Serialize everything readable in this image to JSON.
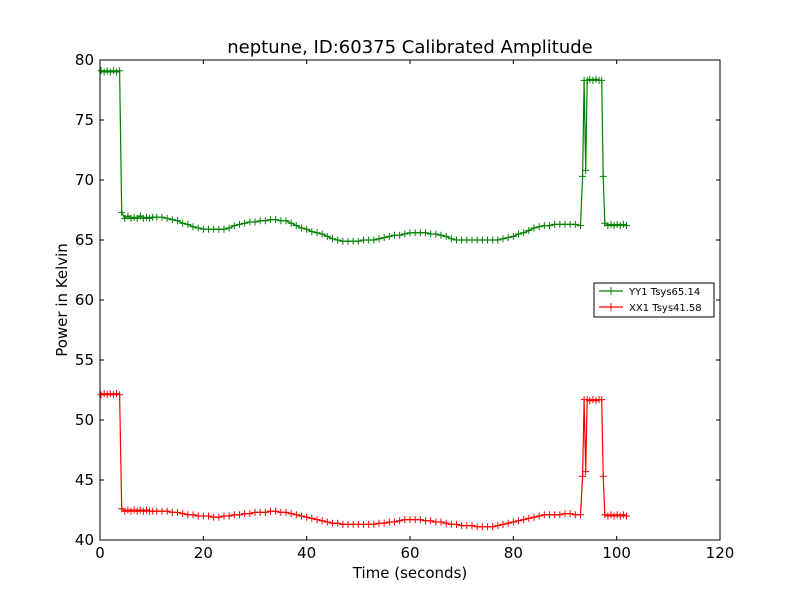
{
  "chart_data": {
    "type": "line",
    "title": "neptune, ID:60375 Calibrated Amplitude",
    "xlabel": "Time (seconds)",
    "ylabel": "Power in Kelvin",
    "xlim": [
      0,
      120
    ],
    "ylim": [
      40,
      80
    ],
    "xticks": [
      0,
      20,
      40,
      60,
      80,
      100,
      120
    ],
    "yticks": [
      40,
      45,
      50,
      55,
      60,
      65,
      70,
      75,
      80
    ],
    "grid": false,
    "legend_position": "right",
    "marker": "+",
    "series": [
      {
        "name": "YY1 Tsys65.14",
        "color": "#008000",
        "points": [
          [
            0.2,
            79.1
          ],
          [
            0.8,
            79.0
          ],
          [
            1.4,
            79.1
          ],
          [
            2.0,
            79.0
          ],
          [
            2.6,
            79.1
          ],
          [
            3.2,
            79.0
          ],
          [
            3.8,
            79.1
          ],
          [
            4.2,
            67.3
          ],
          [
            4.8,
            66.8
          ],
          [
            5.4,
            67.0
          ],
          [
            6.0,
            66.8
          ],
          [
            6.6,
            66.9
          ],
          [
            7.2,
            66.8
          ],
          [
            7.8,
            67.0
          ],
          [
            8.4,
            66.8
          ],
          [
            9.0,
            66.9
          ],
          [
            9.6,
            66.8
          ],
          [
            10.2,
            66.9
          ],
          [
            11.0,
            66.9
          ],
          [
            12.0,
            66.9
          ],
          [
            13.0,
            66.8
          ],
          [
            14.0,
            66.7
          ],
          [
            15.0,
            66.6
          ],
          [
            16.0,
            66.4
          ],
          [
            17.0,
            66.3
          ],
          [
            18.0,
            66.1
          ],
          [
            19.0,
            66.0
          ],
          [
            20.0,
            65.9
          ],
          [
            21.0,
            65.9
          ],
          [
            22.0,
            65.9
          ],
          [
            23.0,
            65.9
          ],
          [
            24.0,
            65.9
          ],
          [
            25.0,
            66.0
          ],
          [
            26.0,
            66.2
          ],
          [
            27.0,
            66.3
          ],
          [
            28.0,
            66.4
          ],
          [
            29.0,
            66.5
          ],
          [
            30.0,
            66.5
          ],
          [
            31.0,
            66.6
          ],
          [
            32.0,
            66.6
          ],
          [
            33.0,
            66.7
          ],
          [
            34.0,
            66.7
          ],
          [
            35.0,
            66.6
          ],
          [
            36.0,
            66.6
          ],
          [
            37.0,
            66.4
          ],
          [
            38.0,
            66.2
          ],
          [
            39.0,
            66.0
          ],
          [
            40.0,
            65.9
          ],
          [
            41.0,
            65.7
          ],
          [
            42.0,
            65.6
          ],
          [
            43.0,
            65.5
          ],
          [
            44.0,
            65.3
          ],
          [
            45.0,
            65.1
          ],
          [
            46.0,
            65.0
          ],
          [
            47.0,
            64.9
          ],
          [
            48.0,
            64.9
          ],
          [
            49.0,
            64.9
          ],
          [
            50.0,
            64.9
          ],
          [
            51.0,
            65.0
          ],
          [
            52.0,
            65.0
          ],
          [
            53.0,
            65.0
          ],
          [
            54.0,
            65.1
          ],
          [
            55.0,
            65.2
          ],
          [
            56.0,
            65.3
          ],
          [
            57.0,
            65.4
          ],
          [
            58.0,
            65.4
          ],
          [
            59.0,
            65.5
          ],
          [
            60.0,
            65.6
          ],
          [
            61.0,
            65.6
          ],
          [
            62.0,
            65.6
          ],
          [
            63.0,
            65.6
          ],
          [
            64.0,
            65.5
          ],
          [
            65.0,
            65.5
          ],
          [
            66.0,
            65.4
          ],
          [
            67.0,
            65.3
          ],
          [
            68.0,
            65.1
          ],
          [
            69.0,
            65.0
          ],
          [
            70.0,
            65.0
          ],
          [
            71.0,
            65.0
          ],
          [
            72.0,
            65.0
          ],
          [
            73.0,
            65.0
          ],
          [
            74.0,
            65.0
          ],
          [
            75.0,
            65.0
          ],
          [
            76.0,
            65.0
          ],
          [
            77.0,
            65.0
          ],
          [
            78.0,
            65.1
          ],
          [
            79.0,
            65.2
          ],
          [
            80.0,
            65.3
          ],
          [
            81.0,
            65.5
          ],
          [
            82.0,
            65.6
          ],
          [
            83.0,
            65.8
          ],
          [
            84.0,
            66.0
          ],
          [
            85.0,
            66.1
          ],
          [
            86.0,
            66.2
          ],
          [
            87.0,
            66.2
          ],
          [
            88.0,
            66.3
          ],
          [
            89.0,
            66.3
          ],
          [
            90.0,
            66.3
          ],
          [
            91.0,
            66.3
          ],
          [
            92.0,
            66.3
          ],
          [
            93.0,
            66.2
          ],
          [
            93.4,
            70.3
          ],
          [
            93.7,
            78.3
          ],
          [
            94.0,
            70.8
          ],
          [
            94.3,
            78.3
          ],
          [
            94.8,
            78.4
          ],
          [
            95.4,
            78.3
          ],
          [
            96.0,
            78.4
          ],
          [
            96.6,
            78.3
          ],
          [
            97.1,
            78.3
          ],
          [
            97.4,
            70.3
          ],
          [
            97.7,
            66.4
          ],
          [
            98.3,
            66.2
          ],
          [
            98.9,
            66.3
          ],
          [
            99.5,
            66.2
          ],
          [
            100.1,
            66.3
          ],
          [
            100.7,
            66.2
          ],
          [
            101.3,
            66.3
          ],
          [
            101.9,
            66.2
          ]
        ]
      },
      {
        "name": "XX1 Tsys41.58",
        "color": "#ff0000",
        "points": [
          [
            0.2,
            52.1
          ],
          [
            0.8,
            52.2
          ],
          [
            1.4,
            52.1
          ],
          [
            2.0,
            52.2
          ],
          [
            2.6,
            52.1
          ],
          [
            3.2,
            52.2
          ],
          [
            3.8,
            52.1
          ],
          [
            4.2,
            42.6
          ],
          [
            4.8,
            42.4
          ],
          [
            5.4,
            42.5
          ],
          [
            6.0,
            42.4
          ],
          [
            6.6,
            42.5
          ],
          [
            7.2,
            42.4
          ],
          [
            7.8,
            42.5
          ],
          [
            8.4,
            42.4
          ],
          [
            9.0,
            42.5
          ],
          [
            9.6,
            42.4
          ],
          [
            10.2,
            42.4
          ],
          [
            11.0,
            42.4
          ],
          [
            12.0,
            42.4
          ],
          [
            13.0,
            42.4
          ],
          [
            14.0,
            42.3
          ],
          [
            15.0,
            42.3
          ],
          [
            16.0,
            42.2
          ],
          [
            17.0,
            42.1
          ],
          [
            18.0,
            42.1
          ],
          [
            19.0,
            42.0
          ],
          [
            20.0,
            42.0
          ],
          [
            21.0,
            42.0
          ],
          [
            22.0,
            41.9
          ],
          [
            23.0,
            41.9
          ],
          [
            24.0,
            42.0
          ],
          [
            25.0,
            42.0
          ],
          [
            26.0,
            42.1
          ],
          [
            27.0,
            42.1
          ],
          [
            28.0,
            42.2
          ],
          [
            29.0,
            42.2
          ],
          [
            30.0,
            42.3
          ],
          [
            31.0,
            42.3
          ],
          [
            32.0,
            42.3
          ],
          [
            33.0,
            42.4
          ],
          [
            34.0,
            42.4
          ],
          [
            35.0,
            42.3
          ],
          [
            36.0,
            42.3
          ],
          [
            37.0,
            42.2
          ],
          [
            38.0,
            42.1
          ],
          [
            39.0,
            42.0
          ],
          [
            40.0,
            41.9
          ],
          [
            41.0,
            41.8
          ],
          [
            42.0,
            41.7
          ],
          [
            43.0,
            41.6
          ],
          [
            44.0,
            41.5
          ],
          [
            45.0,
            41.4
          ],
          [
            46.0,
            41.4
          ],
          [
            47.0,
            41.3
          ],
          [
            48.0,
            41.3
          ],
          [
            49.0,
            41.3
          ],
          [
            50.0,
            41.3
          ],
          [
            51.0,
            41.3
          ],
          [
            52.0,
            41.3
          ],
          [
            53.0,
            41.3
          ],
          [
            54.0,
            41.4
          ],
          [
            55.0,
            41.4
          ],
          [
            56.0,
            41.5
          ],
          [
            57.0,
            41.5
          ],
          [
            58.0,
            41.6
          ],
          [
            59.0,
            41.7
          ],
          [
            60.0,
            41.7
          ],
          [
            61.0,
            41.7
          ],
          [
            62.0,
            41.7
          ],
          [
            63.0,
            41.6
          ],
          [
            64.0,
            41.6
          ],
          [
            65.0,
            41.5
          ],
          [
            66.0,
            41.5
          ],
          [
            67.0,
            41.4
          ],
          [
            68.0,
            41.3
          ],
          [
            69.0,
            41.3
          ],
          [
            70.0,
            41.2
          ],
          [
            71.0,
            41.2
          ],
          [
            72.0,
            41.2
          ],
          [
            73.0,
            41.1
          ],
          [
            74.0,
            41.1
          ],
          [
            75.0,
            41.1
          ],
          [
            76.0,
            41.1
          ],
          [
            77.0,
            41.2
          ],
          [
            78.0,
            41.3
          ],
          [
            79.0,
            41.4
          ],
          [
            80.0,
            41.5
          ],
          [
            81.0,
            41.6
          ],
          [
            82.0,
            41.7
          ],
          [
            83.0,
            41.8
          ],
          [
            84.0,
            41.9
          ],
          [
            85.0,
            42.0
          ],
          [
            86.0,
            42.1
          ],
          [
            87.0,
            42.1
          ],
          [
            88.0,
            42.1
          ],
          [
            89.0,
            42.1
          ],
          [
            90.0,
            42.2
          ],
          [
            91.0,
            42.2
          ],
          [
            92.0,
            42.1
          ],
          [
            93.0,
            42.1
          ],
          [
            93.4,
            45.3
          ],
          [
            93.7,
            51.7
          ],
          [
            94.0,
            45.7
          ],
          [
            94.3,
            51.7
          ],
          [
            94.8,
            51.6
          ],
          [
            95.4,
            51.7
          ],
          [
            96.0,
            51.6
          ],
          [
            96.6,
            51.7
          ],
          [
            97.1,
            51.7
          ],
          [
            97.4,
            45.3
          ],
          [
            97.7,
            42.1
          ],
          [
            98.3,
            42.0
          ],
          [
            98.9,
            42.1
          ],
          [
            99.5,
            42.0
          ],
          [
            100.1,
            42.1
          ],
          [
            100.7,
            42.0
          ],
          [
            101.3,
            42.1
          ],
          [
            101.9,
            42.0
          ]
        ]
      }
    ]
  }
}
